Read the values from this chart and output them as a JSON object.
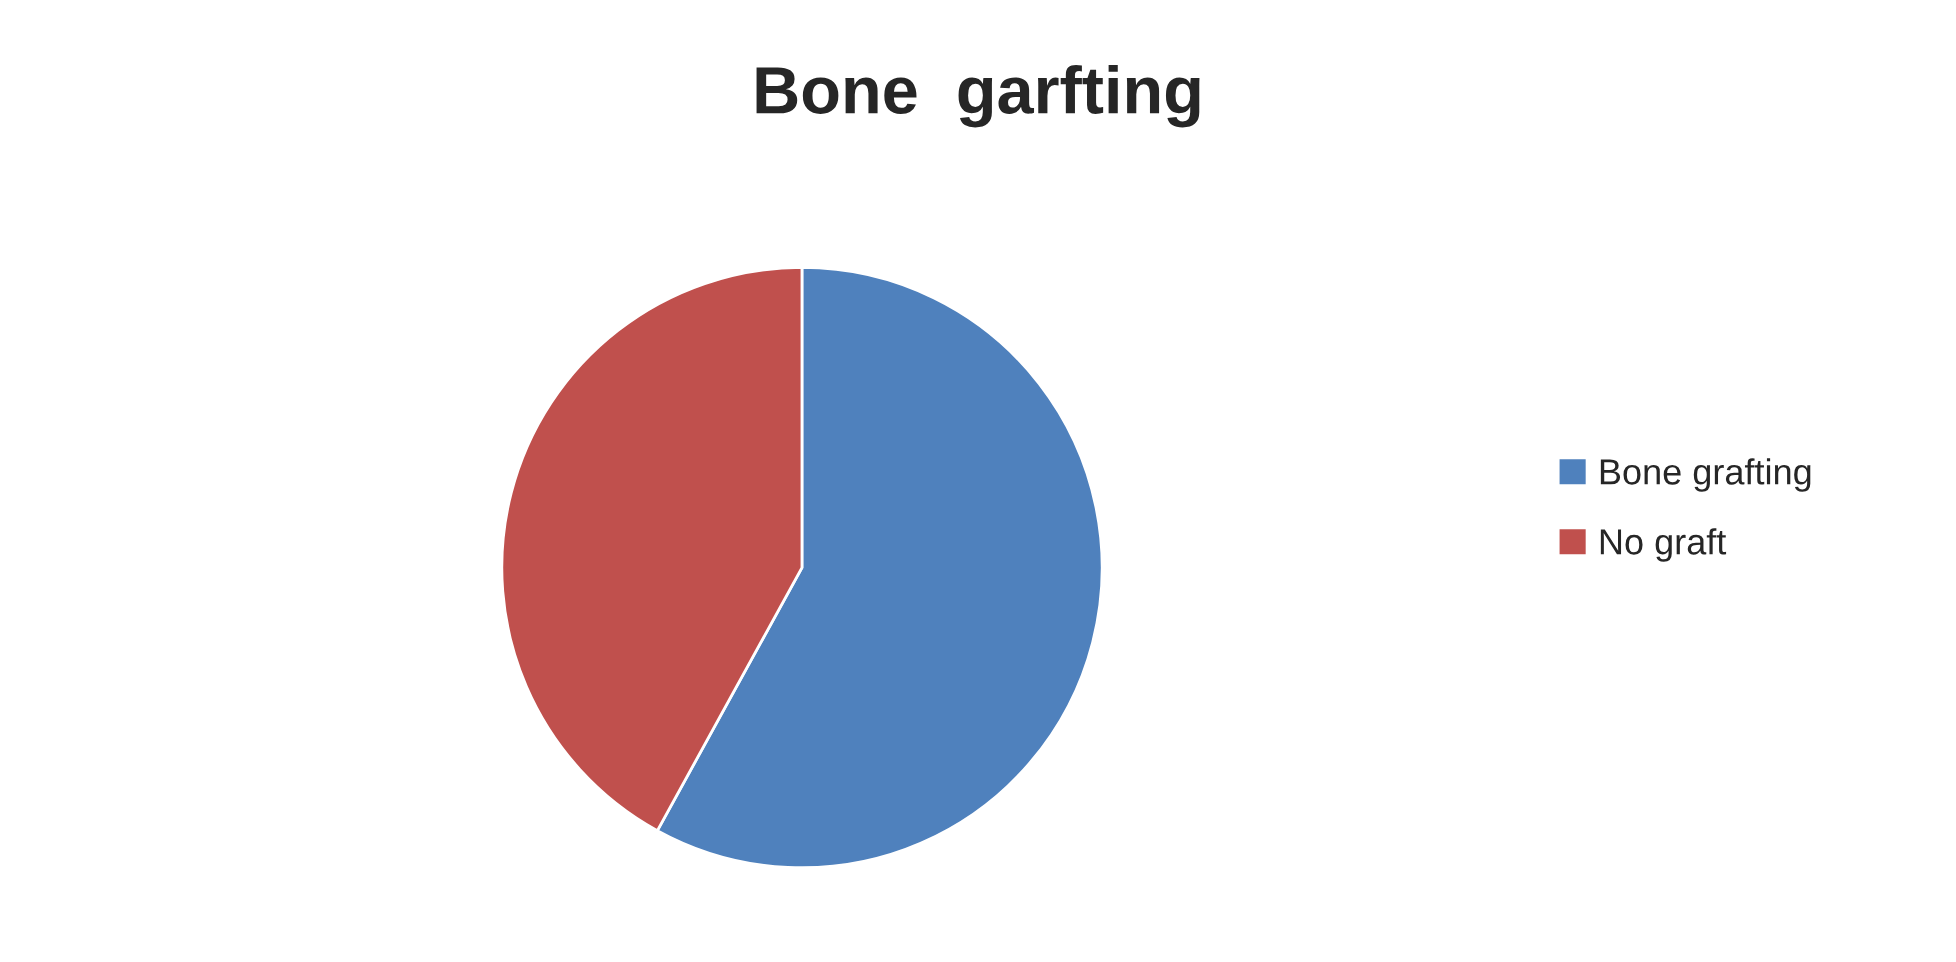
{
  "chart_data": {
    "type": "pie",
    "title": "Bone  garfting",
    "categories": [
      "Bone grafting",
      "No graft"
    ],
    "values": [
      58,
      42
    ],
    "colors": [
      "#4f81bd",
      "#c0504d"
    ],
    "legend": "right"
  }
}
